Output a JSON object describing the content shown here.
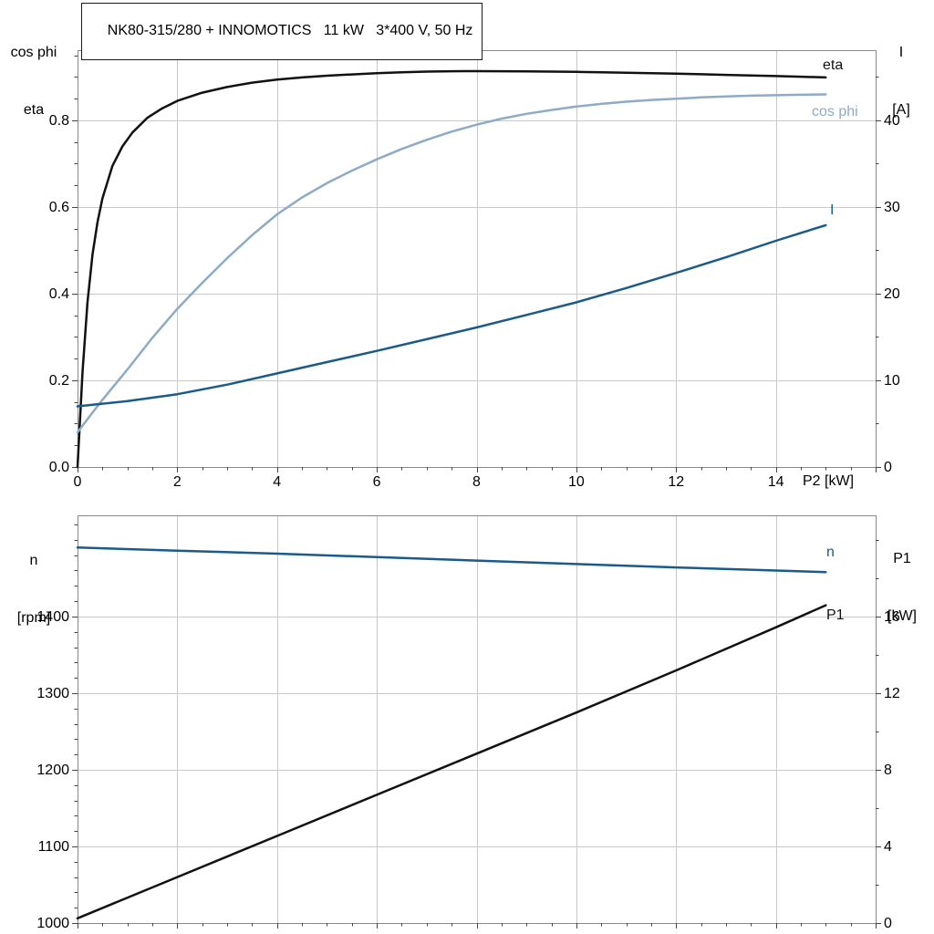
{
  "chart_data": [
    {
      "type": "line",
      "title": "NK80-315/280 + INNOMOTICS   11 kW   3*400 V, 50 Hz",
      "x_axis": {
        "label": "P2 [kW]",
        "min": 0,
        "max": 16,
        "major_ticks": [
          0,
          2,
          4,
          6,
          8,
          10,
          12,
          14,
          16
        ],
        "tick_labels": [
          0,
          2,
          4,
          6,
          8,
          10,
          12,
          14
        ],
        "minor_step": 0.5
      },
      "left_axis": {
        "label_lines": [
          "cos phi",
          "eta"
        ],
        "min": 0,
        "max": 0.962,
        "major_ticks": [
          0,
          0.2,
          0.4,
          0.6,
          0.8
        ],
        "minor_step": 0.05,
        "decimals": 1
      },
      "right_axis": {
        "label_lines": [
          "I",
          "[A]"
        ],
        "min": 0,
        "max": 48.1,
        "major_ticks": [
          0,
          10,
          20,
          30,
          40
        ],
        "minor_step": 5,
        "decimals": 0
      },
      "grid": true,
      "series": [
        {
          "name": "eta",
          "axis": "left",
          "color": "#111111",
          "points": [
            [
              0,
              0
            ],
            [
              0.1,
              0.22
            ],
            [
              0.2,
              0.38
            ],
            [
              0.3,
              0.49
            ],
            [
              0.4,
              0.565
            ],
            [
              0.5,
              0.62
            ],
            [
              0.7,
              0.695
            ],
            [
              0.9,
              0.74
            ],
            [
              1.1,
              0.772
            ],
            [
              1.4,
              0.806
            ],
            [
              1.7,
              0.828
            ],
            [
              2,
              0.845
            ],
            [
              2.5,
              0.864
            ],
            [
              3,
              0.877
            ],
            [
              3.5,
              0.887
            ],
            [
              4,
              0.894
            ],
            [
              4.5,
              0.899
            ],
            [
              5,
              0.903
            ],
            [
              5.5,
              0.906
            ],
            [
              6,
              0.909
            ],
            [
              6.5,
              0.911
            ],
            [
              7,
              0.9125
            ],
            [
              7.5,
              0.9133
            ],
            [
              8,
              0.9135
            ],
            [
              8.5,
              0.9133
            ],
            [
              9,
              0.913
            ],
            [
              9.5,
              0.9125
            ],
            [
              10,
              0.9118
            ],
            [
              10.5,
              0.911
            ],
            [
              11,
              0.91
            ],
            [
              11.5,
              0.909
            ],
            [
              12,
              0.9078
            ],
            [
              12.5,
              0.9065
            ],
            [
              13,
              0.905
            ],
            [
              13.5,
              0.9037
            ],
            [
              14,
              0.9022
            ],
            [
              14.5,
              0.9007
            ],
            [
              15,
              0.899
            ]
          ]
        },
        {
          "name": "cos phi",
          "axis": "left",
          "color": "#8dabc7",
          "points": [
            [
              0,
              0.08
            ],
            [
              0.25,
              0.118
            ],
            [
              0.5,
              0.155
            ],
            [
              0.75,
              0.19
            ],
            [
              1,
              0.225
            ],
            [
              1.5,
              0.298
            ],
            [
              2,
              0.365
            ],
            [
              2.5,
              0.425
            ],
            [
              3,
              0.482
            ],
            [
              3.5,
              0.535
            ],
            [
              4,
              0.583
            ],
            [
              4.5,
              0.622
            ],
            [
              5,
              0.655
            ],
            [
              5.5,
              0.684
            ],
            [
              6,
              0.71
            ],
            [
              6.5,
              0.734
            ],
            [
              7,
              0.755
            ],
            [
              7.5,
              0.774
            ],
            [
              8,
              0.79
            ],
            [
              8.5,
              0.804
            ],
            [
              9,
              0.815
            ],
            [
              9.5,
              0.824
            ],
            [
              10,
              0.832
            ],
            [
              10.5,
              0.838
            ],
            [
              11,
              0.843
            ],
            [
              11.5,
              0.847
            ],
            [
              12,
              0.85
            ],
            [
              12.5,
              0.853
            ],
            [
              13,
              0.855
            ],
            [
              13.5,
              0.857
            ],
            [
              14,
              0.858
            ],
            [
              14.5,
              0.859
            ],
            [
              15,
              0.86
            ]
          ]
        },
        {
          "name": "I",
          "axis": "right",
          "color": "#1b5b8a",
          "points": [
            [
              0,
              7.0
            ],
            [
              1,
              7.6
            ],
            [
              2,
              8.4
            ],
            [
              3,
              9.5
            ],
            [
              4,
              10.8
            ],
            [
              5,
              12.1
            ],
            [
              6,
              13.4
            ],
            [
              7,
              14.75
            ],
            [
              8,
              16.1
            ],
            [
              9,
              17.55
            ],
            [
              10,
              19.0
            ],
            [
              11,
              20.65
            ],
            [
              12,
              22.4
            ],
            [
              13,
              24.2
            ],
            [
              14,
              26.1
            ],
            [
              15,
              27.9
            ]
          ]
        }
      ]
    },
    {
      "type": "line",
      "title": "",
      "x_axis": {
        "label": "",
        "min": 0,
        "max": 16,
        "major_ticks": [
          0,
          2,
          4,
          6,
          8,
          10,
          12,
          14,
          16
        ],
        "tick_labels": [],
        "minor_step": 0.5
      },
      "left_axis": {
        "label_lines": [
          "n",
          "[rpm]"
        ],
        "min": 1000,
        "max": 1532,
        "major_ticks": [
          1000,
          1100,
          1200,
          1300,
          1400
        ],
        "minor_step": 20,
        "decimals": 0
      },
      "right_axis": {
        "label_lines": [
          "P1",
          "[kW]"
        ],
        "min": 0,
        "max": 21.3,
        "major_ticks": [
          0,
          4,
          8,
          12,
          16
        ],
        "minor_step": 2,
        "decimals": 0
      },
      "grid": true,
      "series": [
        {
          "name": "n",
          "axis": "left",
          "color": "#1b5b8a",
          "points": [
            [
              0,
              1490
            ],
            [
              2,
              1486
            ],
            [
              4,
              1482
            ],
            [
              6,
              1477.5
            ],
            [
              8,
              1473
            ],
            [
              10,
              1468.5
            ],
            [
              12,
              1464
            ],
            [
              14,
              1460
            ],
            [
              15,
              1458
            ]
          ]
        },
        {
          "name": "P1",
          "axis": "right",
          "color": "#111111",
          "points": [
            [
              0,
              0.25
            ],
            [
              2,
              2.4
            ],
            [
              4,
              4.55
            ],
            [
              6,
              6.7
            ],
            [
              8,
              8.85
            ],
            [
              10,
              11.0
            ],
            [
              12,
              13.2
            ],
            [
              14,
              15.45
            ],
            [
              15,
              16.6
            ]
          ]
        }
      ]
    }
  ],
  "colors": {
    "grid": "#c9c9c9",
    "frame": "#888888",
    "tick": "#444444",
    "eta_black": "#111111",
    "cosphi_blue": "#8dabc7",
    "dark_blue": "#1b5b8a"
  }
}
